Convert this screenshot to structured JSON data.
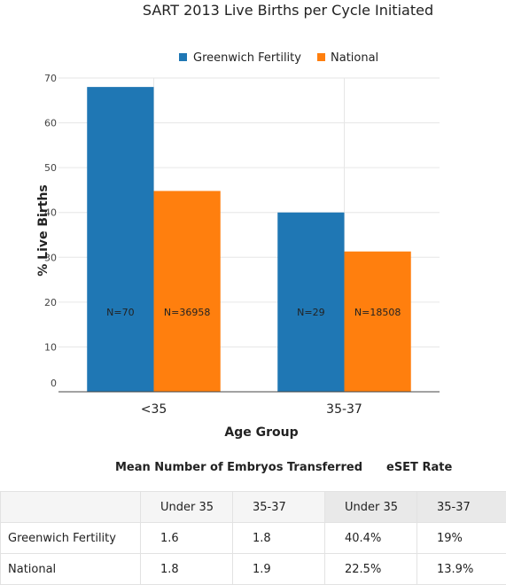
{
  "chart_data": {
    "type": "bar",
    "title": "SART 2013 Live Births per Cycle Initiated",
    "xlabel": "Age Group",
    "ylabel": "% Live Births",
    "categories": [
      "<35",
      "35-37"
    ],
    "ylim": [
      0,
      70
    ],
    "yticks": [
      "0",
      "10",
      "20",
      "30",
      "40",
      "50",
      "60",
      "70"
    ],
    "grid": true,
    "legend_position": "top",
    "series": [
      {
        "name": "Greenwich Fertility",
        "color": "#1f77b4",
        "values": [
          68,
          40
        ],
        "labels": [
          "N=70",
          "N=29"
        ]
      },
      {
        "name": "National",
        "color": "#ff7f0e",
        "values": [
          44.8,
          31.3
        ],
        "labels": [
          "N=36958",
          "N=18508"
        ]
      }
    ]
  },
  "table": {
    "mean_header": "Mean Number of Embryos Transferred",
    "eset_header": "eSET Rate",
    "columns": [
      "Under 35",
      "35-37",
      "Under 35",
      "35-37"
    ],
    "rows": [
      {
        "label": "Greenwich Fertility",
        "cells": [
          "1.6",
          "1.8",
          "40.4%",
          "19%"
        ]
      },
      {
        "label": "National",
        "cells": [
          "1.8",
          "1.9",
          "22.5%",
          "13.9%"
        ]
      }
    ]
  }
}
